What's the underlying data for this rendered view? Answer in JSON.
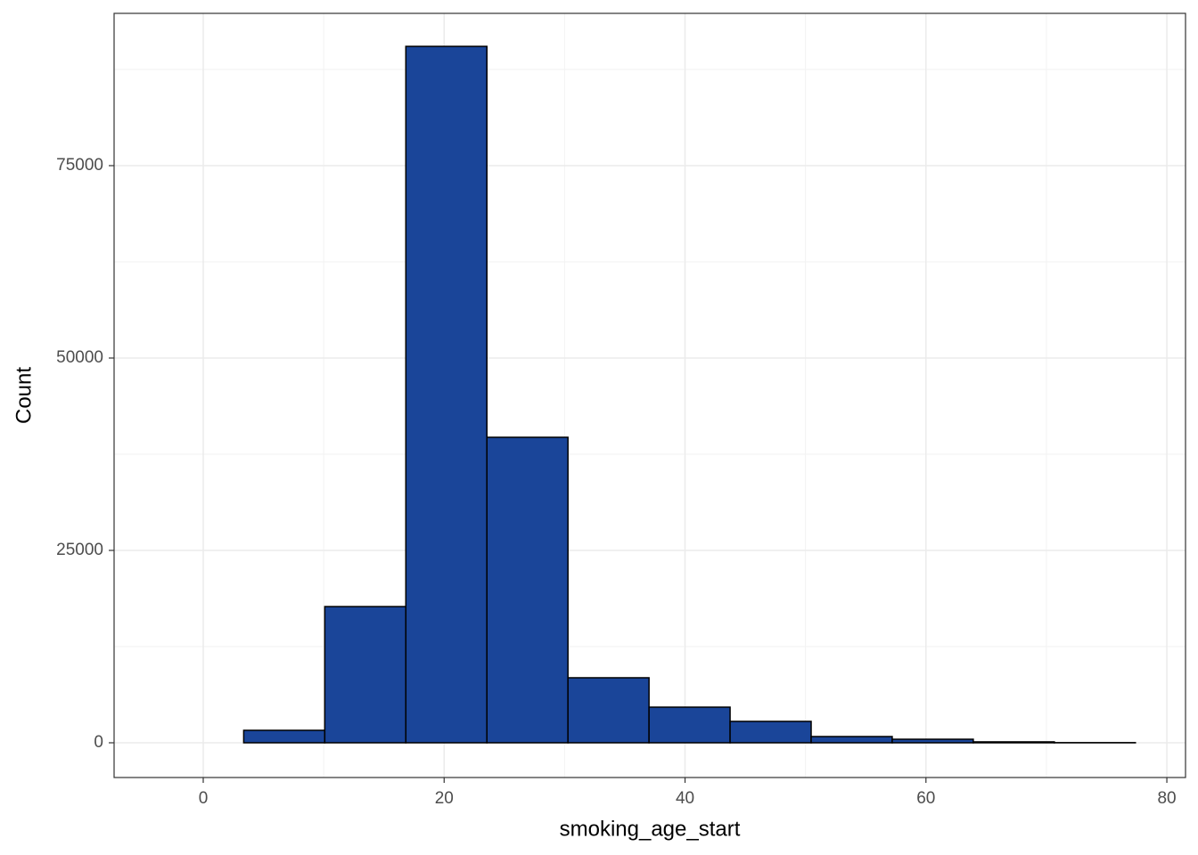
{
  "chart_data": {
    "type": "histogram",
    "x_label": "smoking_age_start",
    "y_label": "Count",
    "bins": [
      -3.37,
      3.36,
      10.09,
      16.82,
      23.55,
      30.28,
      37.01,
      43.74,
      50.47,
      57.2,
      63.93,
      70.66,
      77.39
    ],
    "values": [
      0,
      1620,
      17700,
      90500,
      39700,
      8450,
      4630,
      2780,
      810,
      460,
      120,
      20
    ],
    "color": "#1a4599",
    "edge_color": "#000000",
    "xlim": [
      -7.4,
      81.55
    ],
    "ylim": [
      -4514,
      94790
    ],
    "xticks": [
      0,
      20,
      40,
      60,
      80
    ],
    "yticks": [
      0,
      25000,
      50000,
      75000
    ],
    "grid": true
  }
}
